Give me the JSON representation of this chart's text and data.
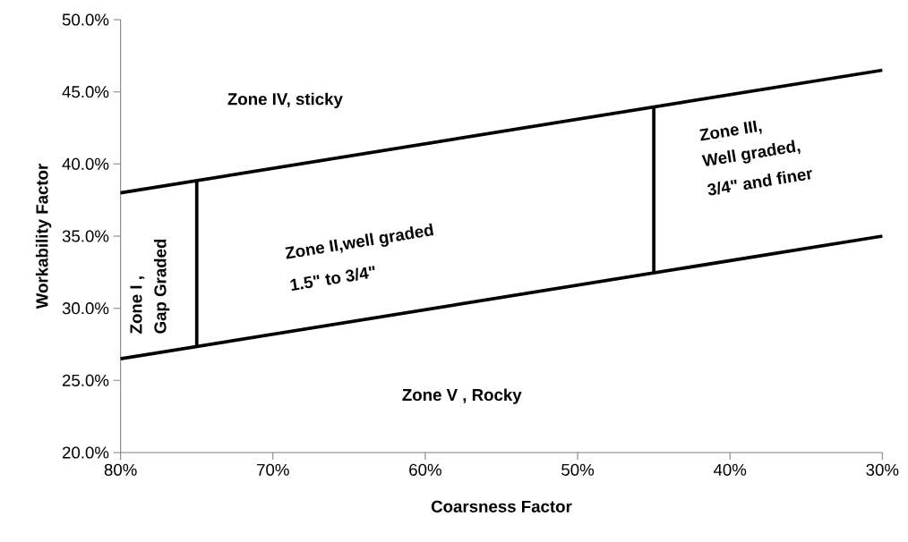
{
  "chart_data": {
    "type": "line",
    "xlabel": "Coarsness Factor",
    "ylabel": "Workability Factor",
    "xlim": [
      80,
      30
    ],
    "ylim": [
      20,
      50
    ],
    "xticks": [
      {
        "value": 80,
        "label": "80%"
      },
      {
        "value": 70,
        "label": "70%"
      },
      {
        "value": 60,
        "label": "60%"
      },
      {
        "value": 50,
        "label": "50%"
      },
      {
        "value": 40,
        "label": "40%"
      },
      {
        "value": 30,
        "label": "30%"
      }
    ],
    "yticks": [
      {
        "value": 20,
        "label": "20.0%"
      },
      {
        "value": 25,
        "label": "25.0%"
      },
      {
        "value": 30,
        "label": "30.0%"
      },
      {
        "value": 35,
        "label": "35.0%"
      },
      {
        "value": 40,
        "label": "40.0%"
      },
      {
        "value": 45,
        "label": "45.0%"
      },
      {
        "value": 50,
        "label": "50.0%"
      }
    ],
    "series": [
      {
        "color": "#000000",
        "x": [
          80,
          30
        ],
        "values": [
          38,
          46.5
        ]
      },
      {
        "color": "#000000",
        "x": [
          80,
          30
        ],
        "values": [
          26.5,
          35
        ]
      },
      {
        "color": "#000000",
        "x": [
          75,
          75
        ],
        "values": [
          27.35,
          38.85
        ]
      },
      {
        "color": "#000000",
        "x": [
          45,
          45
        ],
        "values": [
          32.45,
          43.95
        ]
      }
    ],
    "annotations": [
      "Zone IV, sticky",
      "Zone V , Rocky",
      "Zone  I ,",
      "Gap Graded",
      "Zone II,well graded",
      "1.5\" to 3/4\"",
      "Zone III,",
      "Well graded,",
      "3/4\" and finer"
    ]
  }
}
